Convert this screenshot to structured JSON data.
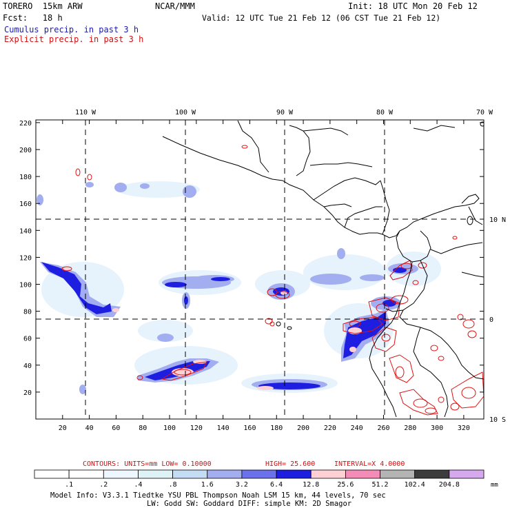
{
  "header": {
    "model": "TORERO  15km ARW",
    "org": "NCAR/MMM",
    "init": "Init: 18 UTC Mon 20 Feb 12",
    "fcst": "Fcst:   18 h",
    "valid": "Valid: 12 UTC Tue 21 Feb 12 (06 CST Tue 21 Feb 12)",
    "line_cumulus": "Cumulus precip. in past 3 h",
    "line_explicit": "Explicit precip. in past 3 h"
  },
  "map": {
    "top_lon_labels": [
      "110 W",
      "100 W",
      "90 W",
      "80 W",
      "70 W"
    ],
    "right_lat_labels": [
      "10 N",
      "0",
      "10 S"
    ],
    "y_ticks": [
      "20",
      "40",
      "60",
      "80",
      "100",
      "120",
      "140",
      "160",
      "180",
      "200",
      "220"
    ],
    "x_ticks": [
      "20",
      "40",
      "60",
      "80",
      "100",
      "120",
      "140",
      "160",
      "180",
      "200",
      "220",
      "240",
      "260",
      "280",
      "300",
      "320"
    ],
    "cumulus_color": "#1a1ab0",
    "explicit_color": "#e01010"
  },
  "contours_line": {
    "units": "CONTOURS:  UNITS=mm  LOW= 0.10000",
    "high": "HIGH=  25.600",
    "interval": "INTERVAL=X  4.0000"
  },
  "colorbar": {
    "labels": [
      ".1",
      ".2",
      ".4",
      ".8",
      "1.6",
      "3.2",
      "6.4",
      "12.8",
      "25.6",
      "51.2",
      "102.4",
      "204.8"
    ],
    "colors": [
      "#ffffff",
      "#ffffff",
      "#eef6ff",
      "#dff3f7",
      "#c4dcf4",
      "#a2aef0",
      "#6b71ea",
      "#1e1ee0",
      "#ffd0d4",
      "#f48cb8",
      "#b4b4b4",
      "#3c3c3c",
      "#d6a8ee"
    ],
    "unit": "mm"
  },
  "footer": {
    "line1": "Model Info: V3.3.1    Tiedtke YSU PBL  Thompson     Noah LSM  15 km,    44 levels,    70 sec",
    "line2": "LW: Godd SW: Goddard DIFF: simple KM: 2D Smagor"
  }
}
